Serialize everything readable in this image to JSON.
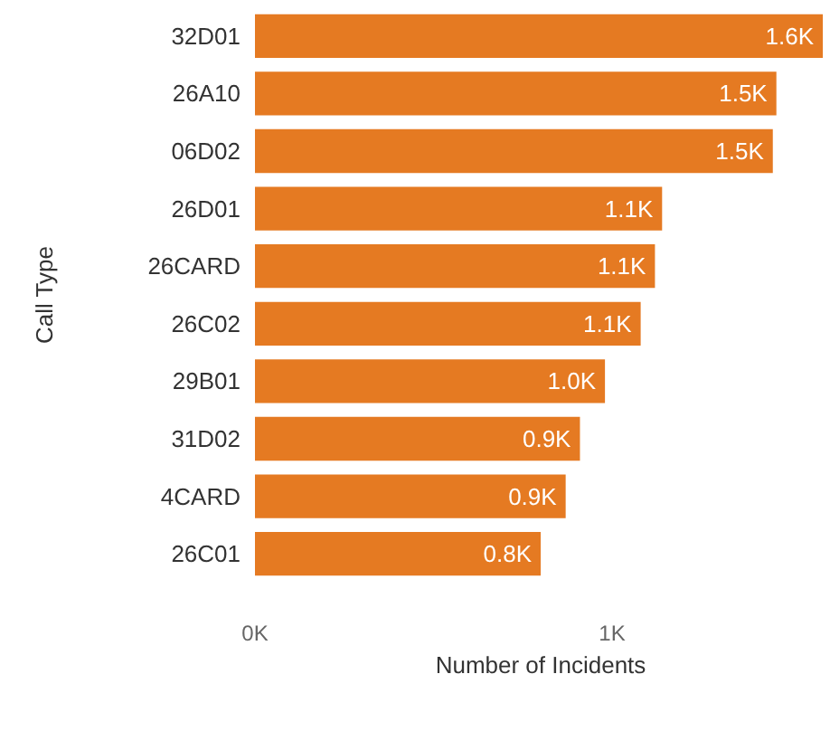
{
  "chart_data": {
    "type": "bar",
    "orientation": "horizontal",
    "xlabel": "Number of Incidents",
    "ylabel": "Call Type",
    "categories": [
      "32D01",
      "26A10",
      "06D02",
      "26D01",
      "26CARD",
      "26C02",
      "29B01",
      "31D02",
      "4CARD",
      "26C01"
    ],
    "values": [
      1.59,
      1.46,
      1.45,
      1.14,
      1.12,
      1.08,
      0.98,
      0.91,
      0.87,
      0.8
    ],
    "value_labels": [
      "1.6K",
      "1.5K",
      "1.5K",
      "1.1K",
      "1.1K",
      "1.1K",
      "1.0K",
      "0.9K",
      "0.9K",
      "0.8K"
    ],
    "color": "#e57a22",
    "xlim": [
      0,
      1.6
    ],
    "xticks": [
      {
        "value": 0,
        "label": "0K"
      },
      {
        "value": 1,
        "label": "1K"
      }
    ],
    "grid": false
  }
}
